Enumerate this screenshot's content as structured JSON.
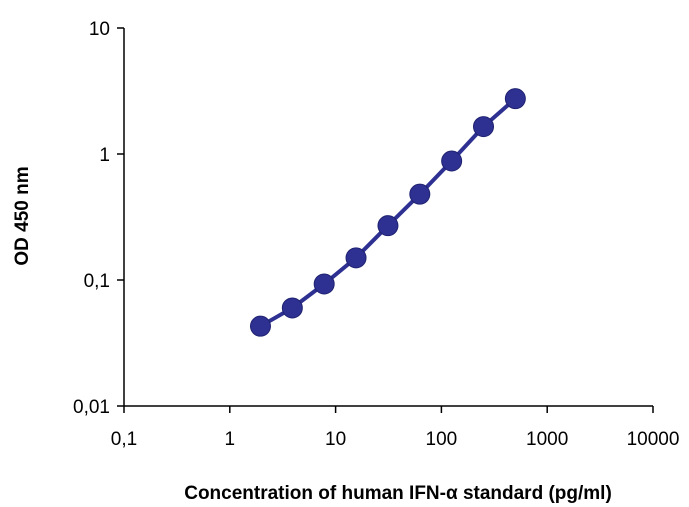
{
  "chart_data": {
    "type": "line",
    "title": "",
    "xlabel": "Concentration of human IFN-α standard (pg/ml)",
    "ylabel": "OD 450 nm",
    "x_scale": "log",
    "y_scale": "log",
    "xlim": [
      0.1,
      10000
    ],
    "ylim": [
      0.01,
      10
    ],
    "x_ticks": [
      0.1,
      1,
      10,
      100,
      1000,
      10000
    ],
    "x_tick_labels": [
      "0,1",
      "1",
      "10",
      "100",
      "1000",
      "10000"
    ],
    "y_ticks": [
      0.01,
      0.1,
      1,
      10
    ],
    "y_tick_labels": [
      "0,01",
      "0,1",
      "1",
      "10"
    ],
    "grid": false,
    "legend": "none",
    "series": [
      {
        "color": "#2e3192",
        "x": [
          1.95,
          3.9,
          7.8,
          15.6,
          31.25,
          62.5,
          125,
          250,
          500
        ],
        "y": [
          0.043,
          0.06,
          0.093,
          0.15,
          0.27,
          0.48,
          0.88,
          1.65,
          2.75
        ]
      }
    ]
  }
}
